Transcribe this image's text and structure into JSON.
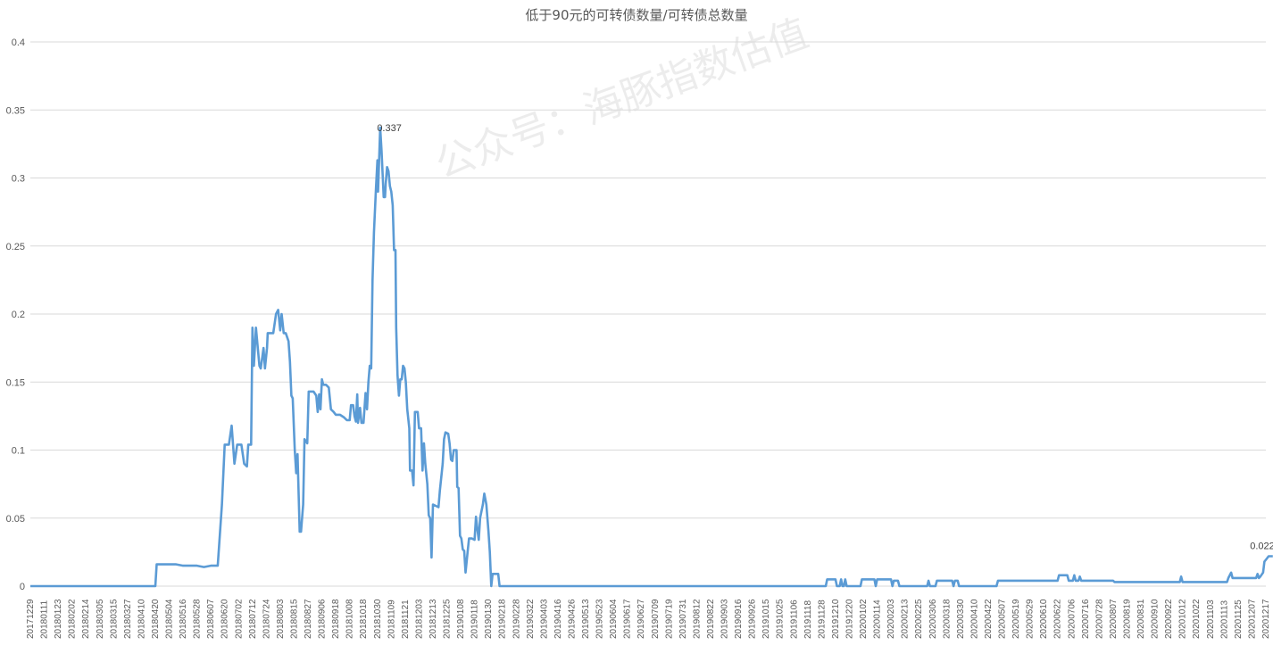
{
  "chart_data": {
    "type": "line",
    "title": "低于90元的可转债数量/可转债总数量",
    "xlabel": "",
    "ylabel": "",
    "ylim": [
      0,
      0.4
    ],
    "yticks": [
      "0",
      "0.05",
      "0.1",
      "0.15",
      "0.2",
      "0.25",
      "0.3",
      "0.35",
      "0.4"
    ],
    "grid": true,
    "legend": "none",
    "line_color": "#5b9bd5",
    "watermark": "公众号：海豚指数估值",
    "x_tick_labels": [
      "20171229",
      "20180111",
      "20180123",
      "20180202",
      "20180214",
      "20180305",
      "20180315",
      "20180327",
      "20180410",
      "20180420",
      "20180504",
      "20180516",
      "20180528",
      "20180607",
      "20180620",
      "20180702",
      "20180712",
      "20180724",
      "20180803",
      "20180815",
      "20180827",
      "20180906",
      "20180918",
      "20181008",
      "20181018",
      "20181030",
      "20181109",
      "20181121",
      "20181203",
      "20181213",
      "20181225",
      "20190108",
      "20190118",
      "20190130",
      "20190218",
      "20190228",
      "20190322",
      "20190403",
      "20190416",
      "20190426",
      "20190513",
      "20190523",
      "20190604",
      "20190617",
      "20190627",
      "20190709",
      "20190719",
      "20190731",
      "20190812",
      "20190822",
      "20190903",
      "20190916",
      "20190926",
      "20191015",
      "20191025",
      "20191106",
      "20191118",
      "20191128",
      "20191210",
      "20191220",
      "20200102",
      "20200114",
      "20200203",
      "20200213",
      "20200225",
      "20200306",
      "20200318",
      "20200330",
      "20200410",
      "20200422",
      "20200507",
      "20200519",
      "20200529",
      "20200610",
      "20200622",
      "20200706",
      "20200716",
      "20200728",
      "20200807",
      "20200819",
      "20200831",
      "20200910",
      "20200922",
      "20201012",
      "20201022",
      "20201103",
      "20201113",
      "20201125",
      "20201207",
      "20201217"
    ],
    "annotations": [
      {
        "text": "0.337",
        "x_index": 24.2,
        "y": 0.337
      },
      {
        "text": "0.022",
        "x_index": 89,
        "y": 0.022
      }
    ],
    "series": [
      {
        "points": [
          [
            0,
            0
          ],
          [
            9,
            0
          ],
          [
            9.1,
            0.016
          ],
          [
            10.5,
            0.016
          ],
          [
            11,
            0.015
          ],
          [
            12,
            0.015
          ],
          [
            12.5,
            0.014
          ],
          [
            13,
            0.015
          ],
          [
            13.5,
            0.015
          ],
          [
            13.8,
            0.06
          ],
          [
            14,
            0.104
          ],
          [
            14.3,
            0.104
          ],
          [
            14.5,
            0.118
          ],
          [
            14.7,
            0.09
          ],
          [
            14.9,
            0.104
          ],
          [
            15.2,
            0.104
          ],
          [
            15.4,
            0.09
          ],
          [
            15.6,
            0.088
          ],
          [
            15.7,
            0.104
          ],
          [
            15.9,
            0.104
          ],
          [
            16.0,
            0.19
          ],
          [
            16.1,
            0.162
          ],
          [
            16.25,
            0.19
          ],
          [
            16.5,
            0.162
          ],
          [
            16.6,
            0.16
          ],
          [
            16.8,
            0.175
          ],
          [
            16.9,
            0.16
          ],
          [
            17.05,
            0.175
          ],
          [
            17.1,
            0.186
          ],
          [
            17.5,
            0.186
          ],
          [
            17.7,
            0.2
          ],
          [
            17.85,
            0.203
          ],
          [
            18.0,
            0.188
          ],
          [
            18.1,
            0.2
          ],
          [
            18.25,
            0.186
          ],
          [
            18.4,
            0.186
          ],
          [
            18.6,
            0.18
          ],
          [
            18.7,
            0.165
          ],
          [
            18.8,
            0.14
          ],
          [
            18.9,
            0.138
          ],
          [
            19.05,
            0.1
          ],
          [
            19.15,
            0.083
          ],
          [
            19.25,
            0.097
          ],
          [
            19.4,
            0.04
          ],
          [
            19.5,
            0.04
          ],
          [
            19.65,
            0.06
          ],
          [
            19.75,
            0.108
          ],
          [
            19.95,
            0.105
          ],
          [
            20.05,
            0.143
          ],
          [
            20.4,
            0.143
          ],
          [
            20.6,
            0.14
          ],
          [
            20.7,
            0.128
          ],
          [
            20.8,
            0.141
          ],
          [
            20.9,
            0.13
          ],
          [
            21.0,
            0.152
          ],
          [
            21.1,
            0.148
          ],
          [
            21.3,
            0.148
          ],
          [
            21.5,
            0.146
          ],
          [
            21.65,
            0.13
          ],
          [
            21.85,
            0.128
          ],
          [
            22.0,
            0.126
          ],
          [
            22.3,
            0.126
          ],
          [
            22.6,
            0.124
          ],
          [
            22.8,
            0.122
          ],
          [
            23.0,
            0.122
          ],
          [
            23.1,
            0.133
          ],
          [
            23.25,
            0.133
          ],
          [
            23.35,
            0.125
          ],
          [
            23.45,
            0.121
          ],
          [
            23.55,
            0.141
          ],
          [
            23.6,
            0.12
          ],
          [
            23.75,
            0.131
          ],
          [
            23.85,
            0.12
          ],
          [
            24.0,
            0.12
          ],
          [
            24.15,
            0.142
          ],
          [
            24.25,
            0.13
          ],
          [
            24.35,
            0.15
          ],
          [
            24.45,
            0.162
          ],
          [
            24.55,
            0.16
          ],
          [
            24.65,
            0.225
          ],
          [
            24.75,
            0.26
          ],
          [
            24.9,
            0.293
          ],
          [
            25.0,
            0.313
          ],
          [
            25.05,
            0.29
          ],
          [
            25.2,
            0.337
          ],
          [
            25.3,
            0.32
          ],
          [
            25.45,
            0.286
          ],
          [
            25.55,
            0.286
          ],
          [
            25.6,
            0.296
          ],
          [
            25.7,
            0.308
          ],
          [
            25.8,
            0.305
          ],
          [
            25.9,
            0.294
          ],
          [
            26.0,
            0.29
          ],
          [
            26.1,
            0.28
          ],
          [
            26.2,
            0.247
          ],
          [
            26.3,
            0.247
          ],
          [
            26.35,
            0.19
          ],
          [
            26.45,
            0.155
          ],
          [
            26.55,
            0.14
          ],
          [
            26.65,
            0.152
          ],
          [
            26.75,
            0.152
          ],
          [
            26.85,
            0.162
          ],
          [
            26.95,
            0.16
          ],
          [
            27.05,
            0.15
          ],
          [
            27.15,
            0.13
          ],
          [
            27.3,
            0.116
          ],
          [
            27.35,
            0.085
          ],
          [
            27.5,
            0.085
          ],
          [
            27.6,
            0.074
          ],
          [
            27.7,
            0.128
          ],
          [
            27.9,
            0.128
          ],
          [
            28.0,
            0.116
          ],
          [
            28.15,
            0.116
          ],
          [
            28.25,
            0.085
          ],
          [
            28.35,
            0.105
          ],
          [
            28.45,
            0.09
          ],
          [
            28.6,
            0.075
          ],
          [
            28.7,
            0.052
          ],
          [
            28.8,
            0.05
          ],
          [
            28.9,
            0.021
          ],
          [
            29.0,
            0.06
          ],
          [
            29.2,
            0.059
          ],
          [
            29.4,
            0.058
          ],
          [
            29.5,
            0.07
          ],
          [
            29.7,
            0.09
          ],
          [
            29.8,
            0.108
          ],
          [
            29.9,
            0.113
          ],
          [
            30.1,
            0.112
          ],
          [
            30.2,
            0.105
          ],
          [
            30.3,
            0.093
          ],
          [
            30.4,
            0.092
          ],
          [
            30.5,
            0.1
          ],
          [
            30.7,
            0.1
          ],
          [
            30.75,
            0.073
          ],
          [
            30.85,
            0.072
          ],
          [
            30.95,
            0.037
          ],
          [
            31.05,
            0.035
          ],
          [
            31.15,
            0.027
          ],
          [
            31.25,
            0.026
          ],
          [
            31.35,
            0.01
          ],
          [
            31.5,
            0.025
          ],
          [
            31.6,
            0.035
          ],
          [
            31.8,
            0.035
          ],
          [
            32.0,
            0.034
          ],
          [
            32.1,
            0.051
          ],
          [
            32.2,
            0.042
          ],
          [
            32.3,
            0.034
          ],
          [
            32.4,
            0.05
          ],
          [
            32.6,
            0.06
          ],
          [
            32.7,
            0.068
          ],
          [
            32.85,
            0.06
          ],
          [
            33.0,
            0.04
          ],
          [
            33.1,
            0.025
          ],
          [
            33.2,
            0.0
          ],
          [
            33.3,
            0.009
          ],
          [
            33.7,
            0.009
          ],
          [
            33.8,
            0.0
          ],
          [
            57.3,
            0.0
          ],
          [
            57.4,
            0.005
          ],
          [
            58.0,
            0.005
          ],
          [
            58.1,
            0.0
          ],
          [
            58.3,
            0.0
          ],
          [
            58.4,
            0.005
          ],
          [
            58.5,
            0.0
          ],
          [
            58.6,
            0.0
          ],
          [
            58.7,
            0.005
          ],
          [
            58.8,
            0.0
          ],
          [
            59.8,
            0.0
          ],
          [
            59.9,
            0.005
          ],
          [
            60.8,
            0.005
          ],
          [
            60.9,
            0.0
          ],
          [
            61.0,
            0.005
          ],
          [
            62.0,
            0.005
          ],
          [
            62.1,
            0.0
          ],
          [
            62.2,
            0.004
          ],
          [
            62.5,
            0.004
          ],
          [
            62.6,
            0.0
          ],
          [
            64.6,
            0.0
          ],
          [
            64.7,
            0.004
          ],
          [
            64.8,
            0.0
          ],
          [
            65.2,
            0.0
          ],
          [
            65.3,
            0.004
          ],
          [
            66.4,
            0.004
          ],
          [
            66.5,
            0.0
          ],
          [
            66.6,
            0.004
          ],
          [
            66.8,
            0.004
          ],
          [
            66.9,
            0.0
          ],
          [
            69.6,
            0.0
          ],
          [
            69.7,
            0.004
          ],
          [
            72.6,
            0.004
          ],
          [
            74.0,
            0.004
          ],
          [
            74.1,
            0.008
          ],
          [
            74.7,
            0.008
          ],
          [
            74.8,
            0.004
          ],
          [
            75.1,
            0.004
          ],
          [
            75.2,
            0.008
          ],
          [
            75.3,
            0.004
          ],
          [
            75.5,
            0.004
          ],
          [
            75.6,
            0.007
          ],
          [
            75.7,
            0.004
          ],
          [
            77.0,
            0.004
          ],
          [
            78.0,
            0.004
          ],
          [
            78.1,
            0.003
          ],
          [
            82.8,
            0.003
          ],
          [
            82.9,
            0.007
          ],
          [
            83.0,
            0.003
          ],
          [
            86.2,
            0.003
          ],
          [
            86.3,
            0.006
          ],
          [
            86.5,
            0.01
          ],
          [
            86.6,
            0.006
          ],
          [
            88.3,
            0.006
          ],
          [
            88.4,
            0.009
          ],
          [
            88.5,
            0.006
          ],
          [
            88.6,
            0.007
          ],
          [
            88.8,
            0.01
          ],
          [
            88.9,
            0.018
          ],
          [
            89.05,
            0.02
          ],
          [
            89.2,
            0.022
          ],
          [
            89.5,
            0.022
          ]
        ]
      }
    ]
  }
}
